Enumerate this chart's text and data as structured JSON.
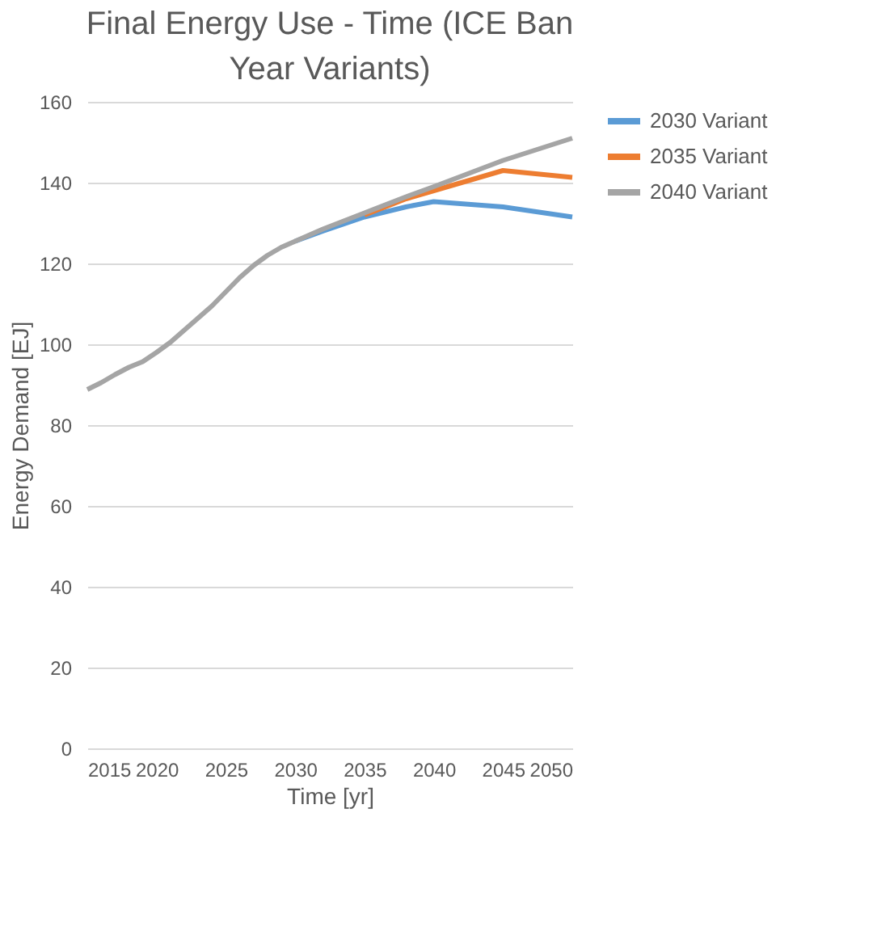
{
  "chart_data": {
    "type": "line",
    "title": "Final Energy Use - Time (ICE Ban Year Variants)",
    "xlabel": "Time [yr]",
    "ylabel": "Energy Demand [EJ]",
    "xlim": [
      2015,
      2050
    ],
    "xticks": [
      2015,
      2020,
      2025,
      2030,
      2035,
      2040,
      2045,
      2050
    ],
    "ylim": [
      0,
      160
    ],
    "yticks": [
      0,
      20,
      40,
      60,
      80,
      100,
      120,
      140,
      160
    ],
    "grid": "y",
    "legend": "right",
    "marker": "none",
    "line_style": "solid",
    "series": [
      {
        "name": "2030 Variant",
        "color": "#5b9bd5",
        "x": [
          2030,
          2032,
          2035,
          2038,
          2040,
          2045,
          2050
        ],
        "values": [
          125.5,
          128,
          131.5,
          134,
          135.3,
          134,
          131.5
        ]
      },
      {
        "name": "2035 Variant",
        "color": "#ed7d31",
        "x": [
          2035,
          2038,
          2040,
          2045,
          2050
        ],
        "values": [
          132,
          136,
          138,
          143,
          141.3
        ]
      },
      {
        "name": "2040 Variant",
        "color": "#a5a5a5",
        "x": [
          2015,
          2016,
          2017,
          2018,
          2019,
          2020,
          2021,
          2022,
          2023,
          2024,
          2025,
          2026,
          2027,
          2028,
          2029,
          2030,
          2032,
          2035,
          2038,
          2040,
          2045,
          2050
        ],
        "values": [
          88.8,
          90.5,
          92.5,
          94.3,
          95.7,
          98,
          100.5,
          103.5,
          106.5,
          109.5,
          113,
          116.5,
          119.5,
          122,
          124,
          125.5,
          128.5,
          132.5,
          136.5,
          139,
          145.5,
          151
        ]
      }
    ]
  }
}
